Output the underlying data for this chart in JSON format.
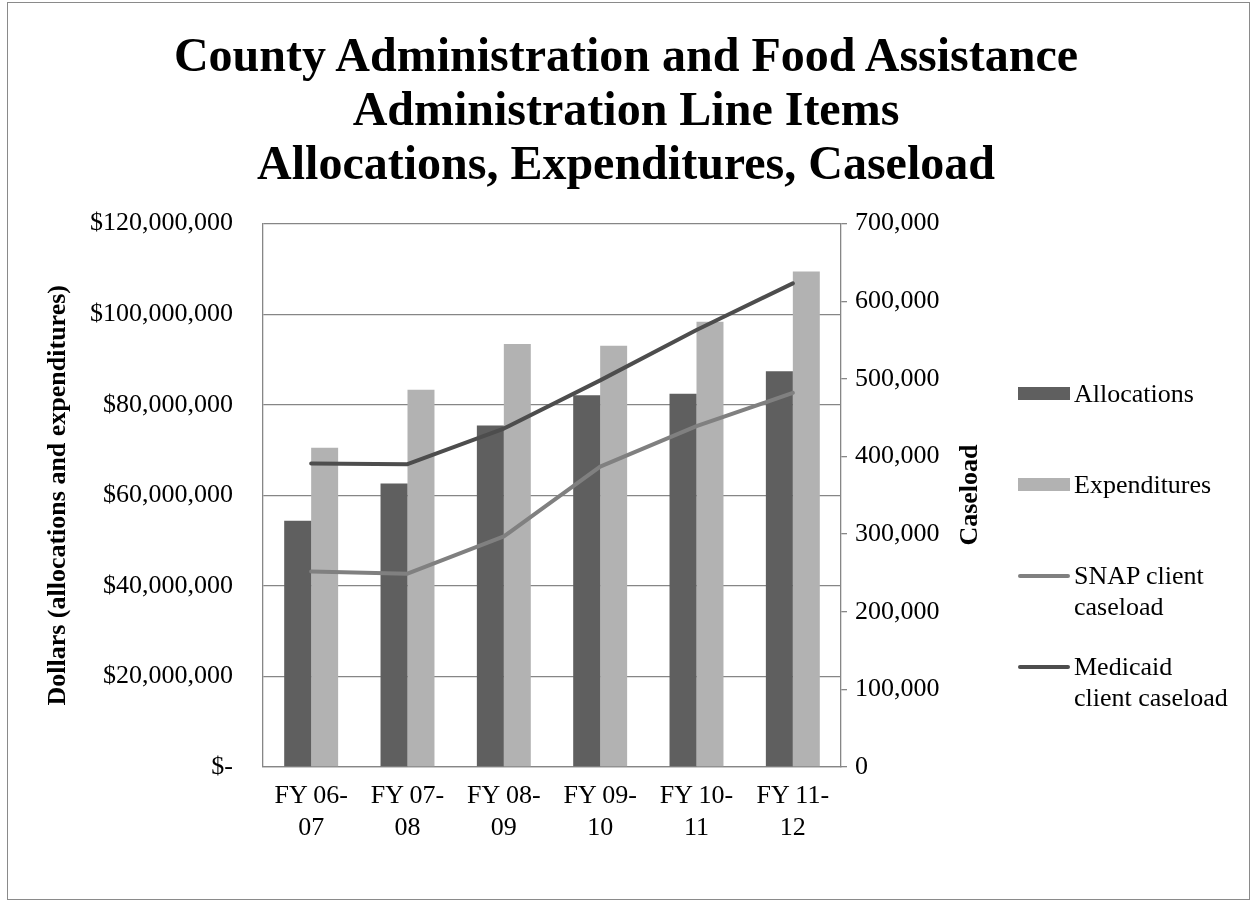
{
  "chart_data": {
    "type": "bar",
    "title": "County Administration and Food Assistance Administration Line Items",
    "subtitle": "Allocations, Expenditures, Caseload",
    "ylabel": "Dollars (allocations and expenditures)",
    "y2label": "Caseload",
    "categories": [
      "FY 06-07",
      "FY 07-08",
      "FY 08-09",
      "FY 09-10",
      "FY 10-11",
      "FY 11-12"
    ],
    "series": [
      {
        "name": "Allocations",
        "color": "#5f5f5f",
        "values": [
          54400000,
          62600000,
          75400000,
          82100000,
          82400000,
          87400000
        ]
      },
      {
        "name": "Expenditures",
        "color": "#b2b2b2",
        "values": [
          70500000,
          83300000,
          93400000,
          93000000,
          98300000,
          109400000
        ]
      },
      {
        "name": "SNAP client caseload",
        "type": "line",
        "axis": "y2",
        "color": "#808080",
        "values": [
          252000,
          249000,
          297000,
          387000,
          439000,
          482000
        ]
      },
      {
        "name": "Medicaid client caseload",
        "type": "line",
        "axis": "y2",
        "color": "#4d4d4d",
        "values": [
          391000,
          390000,
          436000,
          498000,
          563000,
          623000
        ]
      }
    ],
    "ylim": [
      0,
      120000000
    ],
    "yticks": [
      {
        "value": 0,
        "label": "$-"
      },
      {
        "value": 20000000,
        "label": "$20,000,000"
      },
      {
        "value": 40000000,
        "label": "$40,000,000"
      },
      {
        "value": 60000000,
        "label": "$60,000,000"
      },
      {
        "value": 80000000,
        "label": "$80,000,000"
      },
      {
        "value": 100000000,
        "label": "$100,000,000"
      },
      {
        "value": 120000000,
        "label": "$120,000,000"
      }
    ],
    "y2lim": [
      0,
      700000
    ],
    "y2ticks": [
      0,
      {
        "value": 100000,
        "label": "100,000"
      },
      {
        "value": 200000,
        "label": "200,000"
      },
      {
        "value": 300000,
        "label": "300,000"
      },
      {
        "value": 400000,
        "label": "400,000"
      },
      {
        "value": 500000,
        "label": "500,000"
      },
      {
        "value": 600000,
        "label": "600,000"
      },
      {
        "value": 700000,
        "label": "700,000"
      }
    ],
    "grid": "y",
    "legend": "right",
    "marker": "none"
  }
}
